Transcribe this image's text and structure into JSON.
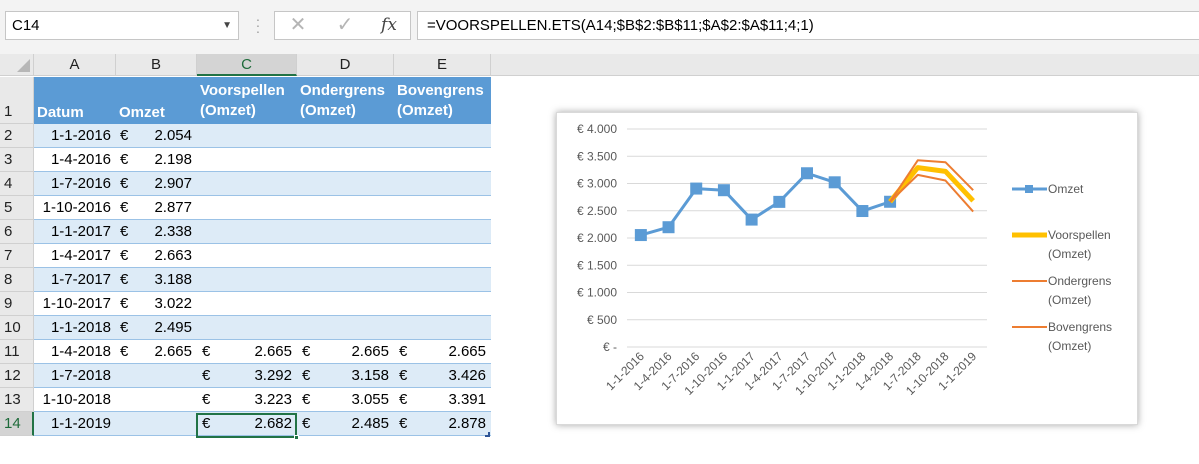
{
  "formula_bar": {
    "name_box": "C14",
    "cancel_icon": "close-icon",
    "enter_icon": "check-icon",
    "function_label": "fx",
    "formula": "=VOORSPELLEN.ETS(A14;$B$2:$B$11;$A$2:$A$11;4;1)"
  },
  "columns": [
    "A",
    "B",
    "C",
    "D",
    "E"
  ],
  "active_column": "C",
  "rows": [
    "1",
    "2",
    "3",
    "4",
    "5",
    "6",
    "7",
    "8",
    "9",
    "10",
    "11",
    "12",
    "13",
    "14"
  ],
  "active_row": "14",
  "table": {
    "header_color": "#5b9bd5",
    "band_color": "#ddebf7",
    "headers": {
      "a": "Datum",
      "b": "Omzet",
      "c1": "Voorspellen",
      "c2": "(Omzet)",
      "d1": "Ondergrens",
      "d2": "(Omzet)",
      "e1": "Bovengrens",
      "e2": "(Omzet)"
    },
    "currency": "€",
    "data": [
      {
        "date": "1-1-2016",
        "omzet": "2.054",
        "fc": "",
        "lo": "",
        "hi": ""
      },
      {
        "date": "1-4-2016",
        "omzet": "2.198",
        "fc": "",
        "lo": "",
        "hi": ""
      },
      {
        "date": "1-7-2016",
        "omzet": "2.907",
        "fc": "",
        "lo": "",
        "hi": ""
      },
      {
        "date": "1-10-2016",
        "omzet": "2.877",
        "fc": "",
        "lo": "",
        "hi": ""
      },
      {
        "date": "1-1-2017",
        "omzet": "2.338",
        "fc": "",
        "lo": "",
        "hi": ""
      },
      {
        "date": "1-4-2017",
        "omzet": "2.663",
        "fc": "",
        "lo": "",
        "hi": ""
      },
      {
        "date": "1-7-2017",
        "omzet": "3.188",
        "fc": "",
        "lo": "",
        "hi": ""
      },
      {
        "date": "1-10-2017",
        "omzet": "3.022",
        "fc": "",
        "lo": "",
        "hi": ""
      },
      {
        "date": "1-1-2018",
        "omzet": "2.495",
        "fc": "",
        "lo": "",
        "hi": ""
      },
      {
        "date": "1-4-2018",
        "omzet": "2.665",
        "fc": "2.665",
        "lo": "2.665",
        "hi": "2.665"
      },
      {
        "date": "1-7-2018",
        "omzet": "",
        "fc": "3.292",
        "lo": "3.158",
        "hi": "3.426"
      },
      {
        "date": "1-10-2018",
        "omzet": "",
        "fc": "3.223",
        "lo": "3.055",
        "hi": "3.391"
      },
      {
        "date": "1-1-2019",
        "omzet": "",
        "fc": "2.682",
        "lo": "2.485",
        "hi": "2.878"
      }
    ]
  },
  "chart_data": {
    "type": "line",
    "categories": [
      "1-1-2016",
      "1-4-2016",
      "1-7-2016",
      "1-10-2016",
      "1-1-2017",
      "1-4-2017",
      "1-7-2017",
      "1-10-2017",
      "1-1-2018",
      "1-4-2018",
      "1-7-2018",
      "1-10-2018",
      "1-1-2019"
    ],
    "y_tick_labels": [
      "€ 4.000",
      "€ 3.500",
      "€ 3.000",
      "€ 2.500",
      "€ 2.000",
      "€ 1.500",
      "€ 1.000",
      "€ 500",
      "€ -"
    ],
    "ylim": [
      0,
      4000
    ],
    "grid": true,
    "legend_position": "right",
    "series": [
      {
        "name": "Omzet",
        "color": "#5b9bd5",
        "marker": "square",
        "values": [
          2054,
          2198,
          2907,
          2877,
          2338,
          2663,
          3188,
          3022,
          2495,
          2665,
          null,
          null,
          null
        ]
      },
      {
        "name": "Voorspellen (Omzet)",
        "color": "#ffc000",
        "values": [
          null,
          null,
          null,
          null,
          null,
          null,
          null,
          null,
          null,
          2665,
          3292,
          3223,
          2682
        ]
      },
      {
        "name": "Ondergrens (Omzet)",
        "color": "#ed7d31",
        "values": [
          null,
          null,
          null,
          null,
          null,
          null,
          null,
          null,
          null,
          2665,
          3158,
          3055,
          2485
        ]
      },
      {
        "name": "Bovengrens (Omzet)",
        "color": "#ed7d31",
        "values": [
          null,
          null,
          null,
          null,
          null,
          null,
          null,
          null,
          null,
          2665,
          3426,
          3391,
          2878
        ]
      }
    ],
    "legend": [
      {
        "line1": "Omzet",
        "line2": ""
      },
      {
        "line1": "Voorspellen",
        "line2": "(Omzet)"
      },
      {
        "line1": "Ondergrens",
        "line2": "(Omzet)"
      },
      {
        "line1": "Bovengrens",
        "line2": "(Omzet)"
      }
    ]
  }
}
